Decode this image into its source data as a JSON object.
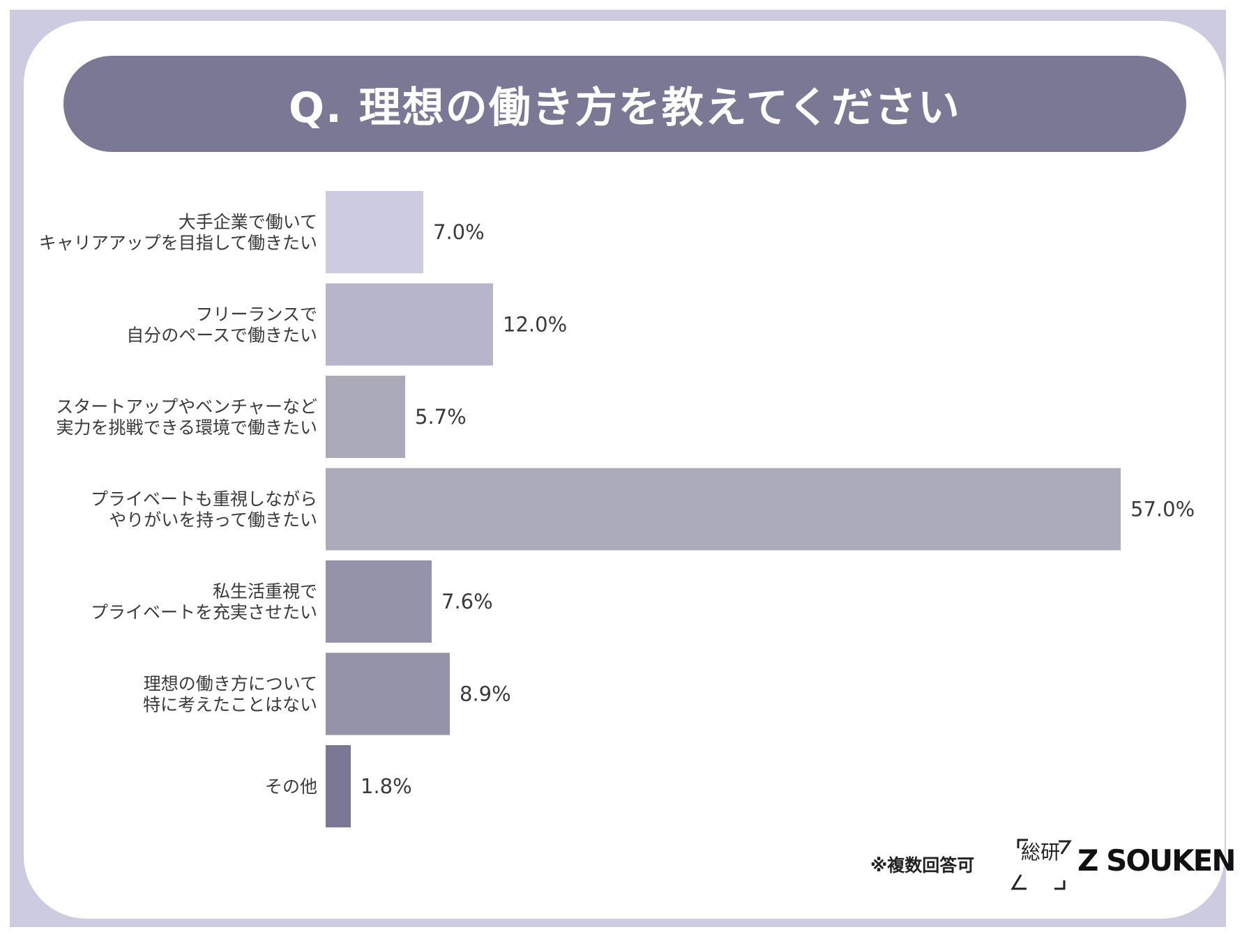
{
  "title": "Q. 理想の働き方を教えてください",
  "footnote": "※複数回答可",
  "logo_jp": "総研",
  "brand": "Z SOUKEN",
  "colors": {
    "frame": "#cdcbe0",
    "title_bar": "#7b7896"
  },
  "chart_data": {
    "type": "bar",
    "orientation": "horizontal",
    "title": "Q. 理想の働き方を教えてください",
    "xlabel": "",
    "ylabel": "",
    "xlim": [
      0,
      57
    ],
    "unit": "%",
    "categories": [
      [
        "大手企業で働いて",
        "キャリアアップを目指して働きたい"
      ],
      [
        "フリーランスで",
        "自分のペースで働きたい"
      ],
      [
        "スタートアップやベンチャーなど",
        "実力を挑戦できる環境で働きたい"
      ],
      [
        "プライベートも重視しながら",
        "やりがいを持って働きたい"
      ],
      [
        "私生活重視で",
        "プライベートを充実させたい"
      ],
      [
        "理想の働き方について",
        "特に考えたことはない"
      ],
      [
        "その他"
      ]
    ],
    "values": [
      7.0,
      12.0,
      5.7,
      57.0,
      7.6,
      8.9,
      1.8
    ],
    "value_labels": [
      "7.0%",
      "12.0%",
      "5.7%",
      "57.0%",
      "7.6%",
      "8.9%",
      "1.8%"
    ],
    "bar_colors": [
      "#cdcbe0",
      "#b7b5cc",
      "#abaab8",
      "#acabb9",
      "#9493aa",
      "#9493aa",
      "#7b7896"
    ]
  }
}
